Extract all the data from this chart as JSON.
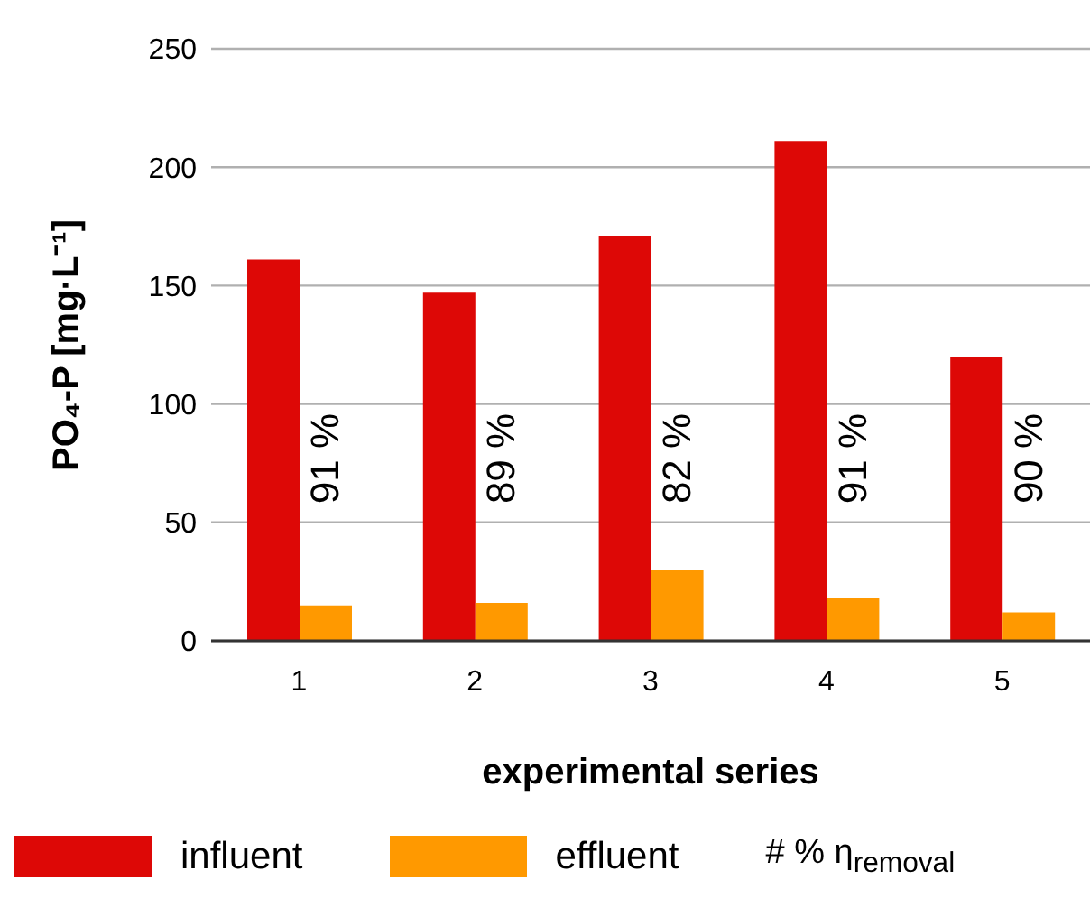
{
  "chart_data": {
    "type": "bar",
    "xlabel": "experimental series",
    "ylabel": "PO₄-P [mg·L⁻¹]",
    "categories": [
      "1",
      "2",
      "3",
      "4",
      "5"
    ],
    "series": [
      {
        "name": "influent",
        "color": "#dd0806",
        "values": [
          161,
          147,
          171,
          211,
          120
        ]
      },
      {
        "name": "effluent",
        "color": "#ff9900",
        "values": [
          15,
          16,
          30,
          18,
          12
        ]
      }
    ],
    "ylim": [
      0,
      250
    ],
    "yticks": [
      0,
      50,
      100,
      150,
      200,
      250
    ],
    "grid": "y",
    "legend": "bottom",
    "annotations": [
      {
        "text": "91 %",
        "x": "1",
        "y": 77
      },
      {
        "text": "89 %",
        "x": "2",
        "y": 77
      },
      {
        "text": "82 %",
        "x": "3",
        "y": 77
      },
      {
        "text": "91 %",
        "x": "4",
        "y": 77
      },
      {
        "text": "90 %",
        "x": "5",
        "y": 77
      },
      "# % η$_{removal}$"
    ]
  }
}
